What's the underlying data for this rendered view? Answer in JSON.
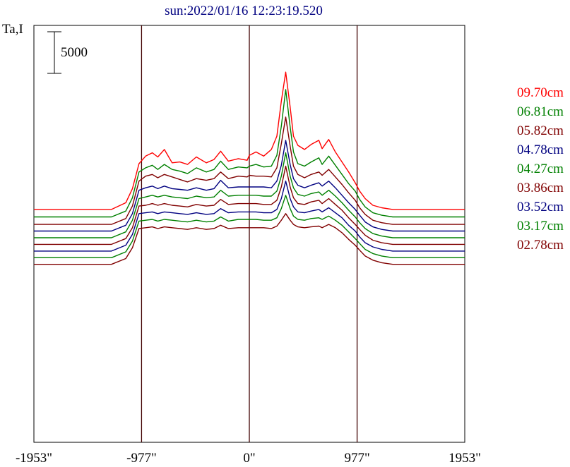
{
  "chart_data": {
    "type": "line",
    "title": "sun:2022/01/16 12:23:19.520",
    "ylabel": "Ta,I",
    "scale_bar_label": "5000",
    "scale_bar_value": 5000,
    "xlim": [
      -1953,
      1953
    ],
    "x_tick_values": [
      -1953,
      -977,
      0,
      977,
      1953
    ],
    "x_tick_labels": [
      "-1953\"",
      "-977\"",
      "0\"",
      "977\"",
      "1953\""
    ],
    "vertical_lines_at": [
      -977,
      0,
      977
    ],
    "grid": false,
    "legend_position": "right",
    "colors": {
      "red": "#ff0000",
      "green": "#008000",
      "maroon": "#800000",
      "navy": "#000080",
      "title": "#000080",
      "frame": "#000000",
      "guide_lines": "#400000"
    },
    "series": [
      {
        "name": "09.70cm",
        "color": "#ff0000",
        "baseline": 4800,
        "x": [
          -1953,
          -1250,
          -1120,
          -1060,
          -1000,
          -940,
          -880,
          -830,
          -770,
          -700,
          -630,
          -560,
          -480,
          -390,
          -320,
          -260,
          -190,
          -100,
          -20,
          0,
          60,
          130,
          200,
          250,
          290,
          330,
          370,
          400,
          440,
          500,
          560,
          630,
          660,
          720,
          780,
          840,
          900,
          960,
          1000,
          1050,
          1120,
          1200,
          1300,
          1953
        ],
        "y": [
          0,
          0,
          800,
          2500,
          5500,
          6400,
          6800,
          6300,
          7200,
          5600,
          5700,
          5400,
          6300,
          5600,
          6000,
          7000,
          5800,
          6100,
          5900,
          6500,
          6900,
          6400,
          7200,
          8800,
          13000,
          16500,
          12300,
          8800,
          7700,
          7200,
          7800,
          8300,
          7300,
          8400,
          6900,
          5700,
          4500,
          3200,
          2200,
          1300,
          500,
          200,
          0,
          0
        ]
      },
      {
        "name": "06.81cm",
        "color": "#008000",
        "baseline": 3900,
        "x": [
          -1953,
          -1250,
          -1120,
          -1060,
          -1000,
          -940,
          -880,
          -830,
          -770,
          -700,
          -630,
          -560,
          -480,
          -390,
          -320,
          -260,
          -190,
          -100,
          -20,
          0,
          60,
          130,
          200,
          250,
          290,
          330,
          370,
          400,
          440,
          500,
          560,
          630,
          660,
          720,
          780,
          840,
          900,
          960,
          1000,
          1050,
          1120,
          1200,
          1300,
          1953
        ],
        "y": [
          0,
          0,
          700,
          2300,
          5400,
          5900,
          6200,
          5700,
          6300,
          5700,
          5500,
          5200,
          5900,
          5400,
          5700,
          6700,
          5700,
          6000,
          5900,
          6100,
          6300,
          6000,
          6100,
          7400,
          10900,
          15300,
          10800,
          7800,
          6400,
          6100,
          6600,
          7100,
          6300,
          7300,
          6200,
          5100,
          4000,
          3100,
          2100,
          1200,
          500,
          200,
          0,
          0
        ]
      },
      {
        "name": "05.82cm",
        "color": "#800000",
        "baseline": 3000,
        "x": [
          -1953,
          -1250,
          -1120,
          -1060,
          -1000,
          -940,
          -880,
          -830,
          -770,
          -700,
          -630,
          -560,
          -480,
          -390,
          -320,
          -260,
          -190,
          -100,
          -20,
          0,
          60,
          130,
          200,
          250,
          290,
          330,
          370,
          400,
          440,
          500,
          560,
          630,
          660,
          720,
          780,
          840,
          900,
          960,
          1000,
          1050,
          1120,
          1200,
          1300,
          1953
        ],
        "y": [
          0,
          0,
          700,
          2200,
          5200,
          5800,
          6000,
          5600,
          6000,
          5700,
          5400,
          5100,
          5500,
          5300,
          5500,
          6300,
          5500,
          5800,
          5700,
          5900,
          5800,
          5800,
          5700,
          6800,
          9700,
          12900,
          9400,
          7000,
          6000,
          5600,
          6000,
          6300,
          5900,
          6600,
          5700,
          4800,
          3800,
          2900,
          2000,
          1200,
          500,
          200,
          0,
          0
        ]
      },
      {
        "name": "04.78cm",
        "color": "#000080",
        "baseline": 2200,
        "x": [
          -1953,
          -1250,
          -1120,
          -1060,
          -1000,
          -940,
          -880,
          -830,
          -770,
          -700,
          -630,
          -560,
          -480,
          -390,
          -320,
          -260,
          -190,
          -100,
          -20,
          0,
          60,
          130,
          200,
          250,
          290,
          330,
          370,
          400,
          440,
          500,
          560,
          630,
          660,
          720,
          780,
          840,
          900,
          960,
          1000,
          1050,
          1120,
          1200,
          1300,
          1953
        ],
        "y": [
          0,
          0,
          700,
          2100,
          4900,
          5200,
          5400,
          5100,
          5400,
          5100,
          5000,
          4900,
          5200,
          4900,
          5100,
          6100,
          5200,
          5300,
          5300,
          5300,
          5300,
          5300,
          5200,
          6000,
          7900,
          10900,
          8000,
          6300,
          5500,
          5200,
          5500,
          5800,
          5400,
          6000,
          5200,
          4300,
          3400,
          2600,
          1900,
          1100,
          500,
          200,
          0,
          0
        ]
      },
      {
        "name": "04.27cm",
        "color": "#008000",
        "baseline": 1400,
        "x": [
          -1953,
          -1250,
          -1120,
          -1060,
          -1000,
          -940,
          -880,
          -830,
          -770,
          -700,
          -630,
          -560,
          -480,
          -390,
          -320,
          -260,
          -190,
          -100,
          -20,
          0,
          60,
          130,
          200,
          250,
          290,
          330,
          370,
          400,
          440,
          500,
          560,
          630,
          660,
          720,
          780,
          840,
          900,
          960,
          1000,
          1050,
          1120,
          1200,
          1300,
          1953
        ],
        "y": [
          0,
          0,
          700,
          2100,
          4700,
          4900,
          5100,
          4900,
          5100,
          4900,
          4800,
          4700,
          5000,
          4800,
          4900,
          5700,
          5000,
          5100,
          5100,
          5100,
          5100,
          5000,
          5000,
          5600,
          7400,
          10200,
          7400,
          6000,
          5200,
          5000,
          5300,
          5500,
          5100,
          5700,
          5000,
          4200,
          3300,
          2500,
          1800,
          1100,
          500,
          200,
          0,
          0
        ]
      },
      {
        "name": "03.86cm",
        "color": "#800000",
        "baseline": 600,
        "x": [
          -1953,
          -1250,
          -1120,
          -1060,
          -1000,
          -940,
          -880,
          -830,
          -770,
          -700,
          -630,
          -560,
          -480,
          -390,
          -320,
          -260,
          -190,
          -100,
          -20,
          0,
          60,
          130,
          200,
          250,
          290,
          330,
          370,
          400,
          440,
          500,
          560,
          630,
          660,
          720,
          780,
          840,
          900,
          960,
          1000,
          1050,
          1120,
          1200,
          1300,
          1953
        ],
        "y": [
          0,
          0,
          700,
          2000,
          4600,
          4700,
          4900,
          4700,
          4900,
          4700,
          4600,
          4500,
          4800,
          4600,
          4700,
          5400,
          4800,
          4900,
          4900,
          4900,
          4900,
          4800,
          4800,
          5300,
          6900,
          9400,
          6900,
          5600,
          4900,
          4800,
          5100,
          5300,
          4900,
          5500,
          4800,
          4100,
          3200,
          2400,
          1800,
          1100,
          500,
          200,
          0,
          0
        ]
      },
      {
        "name": "03.52cm",
        "color": "#000080",
        "baseline": -200,
        "x": [
          -1953,
          -1250,
          -1120,
          -1060,
          -1000,
          -940,
          -880,
          -830,
          -770,
          -700,
          -630,
          -560,
          -480,
          -390,
          -320,
          -260,
          -190,
          -100,
          -20,
          0,
          60,
          130,
          200,
          250,
          290,
          330,
          370,
          400,
          440,
          500,
          560,
          630,
          660,
          720,
          780,
          840,
          900,
          960,
          1000,
          1050,
          1120,
          1200,
          1300,
          1953
        ],
        "y": [
          0,
          0,
          700,
          2000,
          4500,
          4600,
          4700,
          4500,
          4700,
          4600,
          4500,
          4400,
          4600,
          4400,
          4500,
          5100,
          4600,
          4700,
          4700,
          4700,
          4700,
          4600,
          4600,
          5000,
          6300,
          8400,
          6300,
          5300,
          4700,
          4600,
          4800,
          5000,
          4700,
          5200,
          4600,
          4000,
          3100,
          2400,
          1700,
          1000,
          500,
          200,
          0,
          0
        ]
      },
      {
        "name": "03.17cm",
        "color": "#008000",
        "baseline": -1000,
        "x": [
          -1953,
          -1250,
          -1120,
          -1060,
          -1000,
          -940,
          -880,
          -830,
          -770,
          -700,
          -630,
          -560,
          -480,
          -390,
          -320,
          -260,
          -190,
          -100,
          -20,
          0,
          60,
          130,
          200,
          250,
          290,
          330,
          370,
          400,
          440,
          500,
          560,
          630,
          660,
          720,
          780,
          840,
          900,
          960,
          1000,
          1050,
          1120,
          1200,
          1300,
          1953
        ],
        "y": [
          0,
          0,
          700,
          2000,
          4400,
          4500,
          4600,
          4400,
          4600,
          4500,
          4400,
          4300,
          4500,
          4300,
          4400,
          4900,
          4400,
          4600,
          4600,
          4600,
          4600,
          4500,
          4500,
          4800,
          5900,
          7500,
          5900,
          5000,
          4600,
          4500,
          4700,
          4800,
          4600,
          5000,
          4500,
          3900,
          3100,
          2300,
          1700,
          1000,
          500,
          200,
          0,
          0
        ]
      },
      {
        "name": "02.78cm",
        "color": "#800000",
        "baseline": -1800,
        "x": [
          -1953,
          -1250,
          -1120,
          -1060,
          -1000,
          -940,
          -880,
          -830,
          -770,
          -700,
          -630,
          -560,
          -480,
          -390,
          -320,
          -260,
          -190,
          -100,
          -20,
          0,
          60,
          130,
          200,
          250,
          290,
          330,
          370,
          400,
          440,
          500,
          560,
          630,
          660,
          720,
          780,
          840,
          900,
          960,
          1000,
          1050,
          1120,
          1200,
          1300,
          1953
        ],
        "y": [
          0,
          0,
          700,
          2000,
          4300,
          4400,
          4500,
          4300,
          4500,
          4400,
          4300,
          4200,
          4400,
          4200,
          4300,
          4700,
          4300,
          4400,
          4400,
          4400,
          4400,
          4400,
          4300,
          4600,
          5300,
          6100,
          5300,
          4800,
          4500,
          4400,
          4500,
          4600,
          4400,
          4800,
          4400,
          3800,
          3000,
          2300,
          1700,
          1000,
          500,
          200,
          0,
          0
        ]
      }
    ]
  }
}
